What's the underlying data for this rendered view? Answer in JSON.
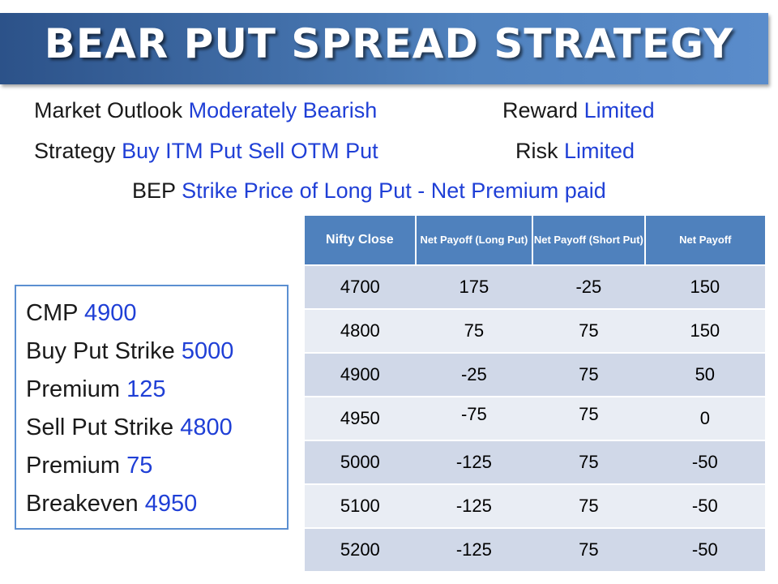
{
  "title": "BEAR PUT SPREAD STRATEGY",
  "info": {
    "market_outlook_label": "Market Outlook",
    "market_outlook_value": "Moderately Bearish",
    "reward_label": "Reward",
    "reward_value": "Limited",
    "strategy_label": "Strategy",
    "strategy_value": "Buy ITM Put Sell OTM Put",
    "risk_label": "Risk",
    "risk_value": "Limited",
    "bep_label": "BEP",
    "bep_value": "Strike Price of Long Put - Net Premium paid"
  },
  "params": [
    {
      "label": "CMP",
      "value": "4900"
    },
    {
      "label": "Buy Put Strike",
      "value": "5000"
    },
    {
      "label": "Premium",
      "value": "125"
    },
    {
      "label": "Sell Put Strike",
      "value": "4800"
    },
    {
      "label": "Premium",
      "value": "75"
    },
    {
      "label": "Breakeven",
      "value": "4950"
    }
  ],
  "table": {
    "headers": [
      "Nifty Close",
      "Net Payoff (Long Put)",
      "Net Payoff (Short Put)",
      "Net Payoff"
    ],
    "rows": [
      [
        "4700",
        "175",
        "-25",
        "150"
      ],
      [
        "4800",
        "75",
        "75",
        "150"
      ],
      [
        "4900",
        "-25",
        "75",
        "50"
      ],
      [
        "4950",
        "-75",
        "75",
        "0"
      ],
      [
        "5000",
        "-125",
        "75",
        "-50"
      ],
      [
        "5100",
        "-125",
        "75",
        "-50"
      ],
      [
        "5200",
        "-125",
        "75",
        "-50"
      ]
    ]
  },
  "colors": {
    "title_bar": "#4f81bd",
    "value_text": "#1f3fd6",
    "table_header": "#4f81bd",
    "row_dark": "#d0d8e8",
    "row_light": "#e9edf4"
  }
}
